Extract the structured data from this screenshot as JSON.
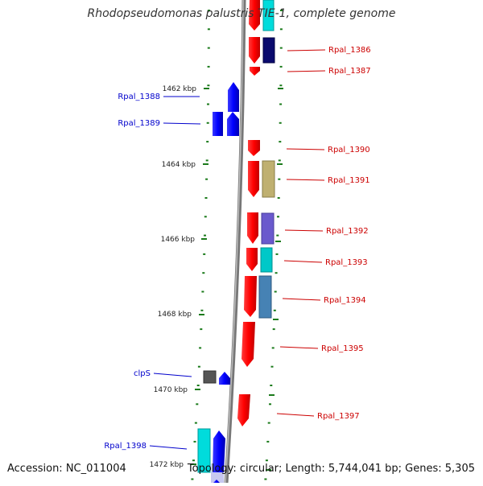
{
  "title": "Rhodopseudomonas palustris TIE-1, complete genome",
  "footer": {
    "accession": "Accession: NC_011004",
    "summary": "Topology: circular; Length: 5,744,041 bp; Genes: 5,305"
  },
  "scale_ticks": [
    "1462 kbp",
    "1464 kbp",
    "1466 kbp",
    "1468 kbp",
    "1470 kbp",
    "1472 kbp"
  ],
  "genes": [
    {
      "name": "Rpal_1386",
      "strand": "plus"
    },
    {
      "name": "Rpal_1387",
      "strand": "plus"
    },
    {
      "name": "Rpal_1388",
      "strand": "minus"
    },
    {
      "name": "Rpal_1389",
      "strand": "minus"
    },
    {
      "name": "Rpal_1390",
      "strand": "plus"
    },
    {
      "name": "Rpal_1391",
      "strand": "plus"
    },
    {
      "name": "Rpal_1392",
      "strand": "plus"
    },
    {
      "name": "Rpal_1393",
      "strand": "plus"
    },
    {
      "name": "Rpal_1394",
      "strand": "plus"
    },
    {
      "name": "Rpal_1395",
      "strand": "plus"
    },
    {
      "name": "clpS",
      "strand": "minus"
    },
    {
      "name": "Rpal_1397",
      "strand": "plus"
    },
    {
      "name": "Rpal_1398",
      "strand": "minus"
    }
  ],
  "colors": {
    "plus_label": "#cc0000",
    "minus_label": "#0000cc",
    "plus_gene": "#ff0000",
    "minus_gene": "#0000ff",
    "backbone": "#808080",
    "tick": "#1a7a1a"
  }
}
